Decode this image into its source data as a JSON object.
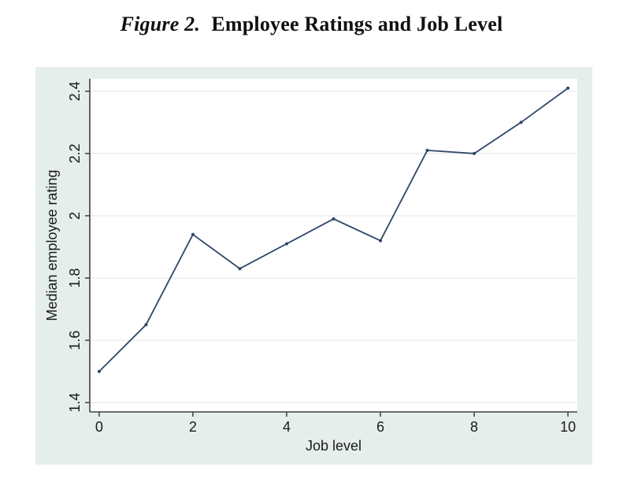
{
  "title": {
    "label": "Figure 2.",
    "text": "Employee Ratings and Job Level"
  },
  "chart_data": {
    "type": "line",
    "x": [
      0,
      1,
      2,
      3,
      4,
      5,
      6,
      7,
      8,
      9,
      10
    ],
    "values": [
      1.5,
      1.65,
      1.94,
      1.83,
      1.91,
      1.99,
      1.92,
      2.21,
      2.2,
      2.3,
      2.41
    ],
    "title": "Figure 2. Employee Ratings and Job Level",
    "xlabel": "Job level",
    "ylabel": "Median employee rating",
    "x_ticks": [
      "0",
      "2",
      "4",
      "6",
      "8",
      "10"
    ],
    "x_tick_values": [
      0,
      2,
      4,
      6,
      8,
      10
    ],
    "y_ticks": [
      "1.4",
      "1.6",
      "1.8",
      "2",
      "2.2",
      "2.4"
    ],
    "y_tick_values": [
      1.4,
      1.6,
      1.8,
      2.0,
      2.2,
      2.4
    ],
    "xlim": [
      -0.2,
      10.2
    ],
    "ylim": [
      1.37,
      2.44
    ],
    "grid": "horizontal",
    "legend": "none",
    "marker": "dot",
    "colors": {
      "line": "#2e4668",
      "figure_bg": "#e6eeeb",
      "plot_bg": "#ffffff",
      "grid": "#e8eef0",
      "axis": "#3f3f3f",
      "text": "#1a1a1a"
    }
  }
}
